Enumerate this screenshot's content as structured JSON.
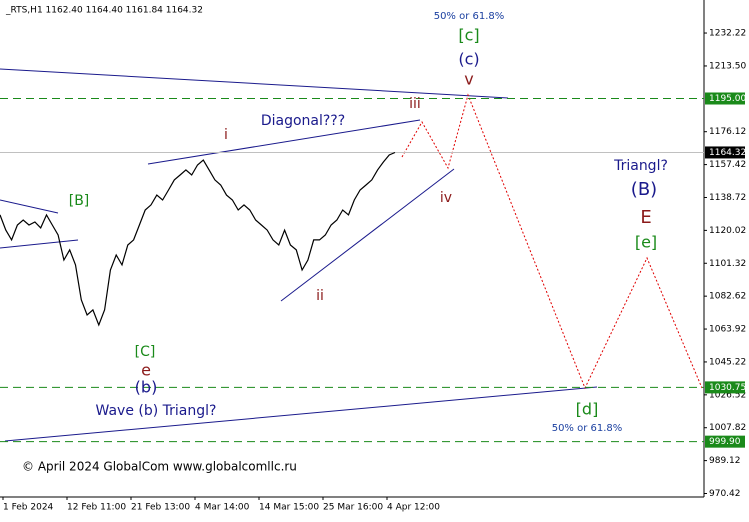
{
  "chart_data": {
    "type": "line",
    "header": "_RTS,H1  1162.40 1164.40 1161.84 1164.32",
    "footer": "© April 2024 GlobalCom www.globalcomllc.ru",
    "x_labels": [
      "1 Feb 2024",
      "12 Feb 11:00",
      "21 Feb 13:00",
      "4 Mar 14:00",
      "14 Mar 15:00",
      "25 Mar 16:00",
      "4 Apr 12:00"
    ],
    "series": [
      {
        "color": "#000000",
        "values": [
          1128.8,
          1120.2,
          1114.6,
          1123.1,
          1125.9,
          1123.1,
          1124.8,
          1121.4,
          1128.8,
          1123.1,
          1117.4,
          1103.2,
          1108.9,
          1100.4,
          1080.5,
          1071.9,
          1074.8,
          1066.2,
          1074.8,
          1097.5,
          1106.0,
          1100.4,
          1111.7,
          1114.6,
          1123.1,
          1131.6,
          1134.5,
          1140.1,
          1137.3,
          1143.0,
          1148.7,
          1151.5,
          1154.4,
          1151.5,
          1157.2,
          1160.0,
          1154.4,
          1148.7,
          1145.8,
          1140.1,
          1137.3,
          1131.6,
          1134.5,
          1131.6,
          1125.9,
          1123.1,
          1120.2,
          1114.6,
          1111.7,
          1120.2,
          1111.7,
          1108.9,
          1097.5,
          1103.2,
          1114.6,
          1114.6,
          1117.4,
          1123.1,
          1125.9,
          1131.6,
          1128.8,
          1137.3,
          1143.0,
          1145.8,
          1148.7,
          1154.4,
          1158.9,
          1162.9,
          1164.32
        ]
      }
    ],
    "ylim": [
      969,
      1251
    ],
    "yticks": [
      1232.22,
      {
        "value": 1213.5,
        "label": "1213.50"
      },
      1176.12,
      1157.42,
      1138.72,
      1120.02,
      1101.32,
      1082.62,
      1063.92,
      1045.22,
      1026.52,
      1007.82,
      989.12,
      970.42
    ],
    "levels": [
      {
        "value": 1195,
        "label": "1195.00"
      },
      {
        "value": 1030.75,
        "label": "1030.75"
      },
      {
        "value": 999.9,
        "label": "999.90"
      }
    ],
    "current": 1164.32,
    "annotations": [
      "50% or 61.8%",
      "[c]",
      "(c)",
      "v",
      "iii",
      "Diagonal???",
      "i",
      "iv",
      "ii",
      "[B]",
      "[C]",
      "e",
      "(b)",
      "Wave (b) Triangl?",
      "Triangl?",
      "(B)",
      "E",
      "[e]",
      "[d]",
      "50% or 61.8%"
    ]
  }
}
